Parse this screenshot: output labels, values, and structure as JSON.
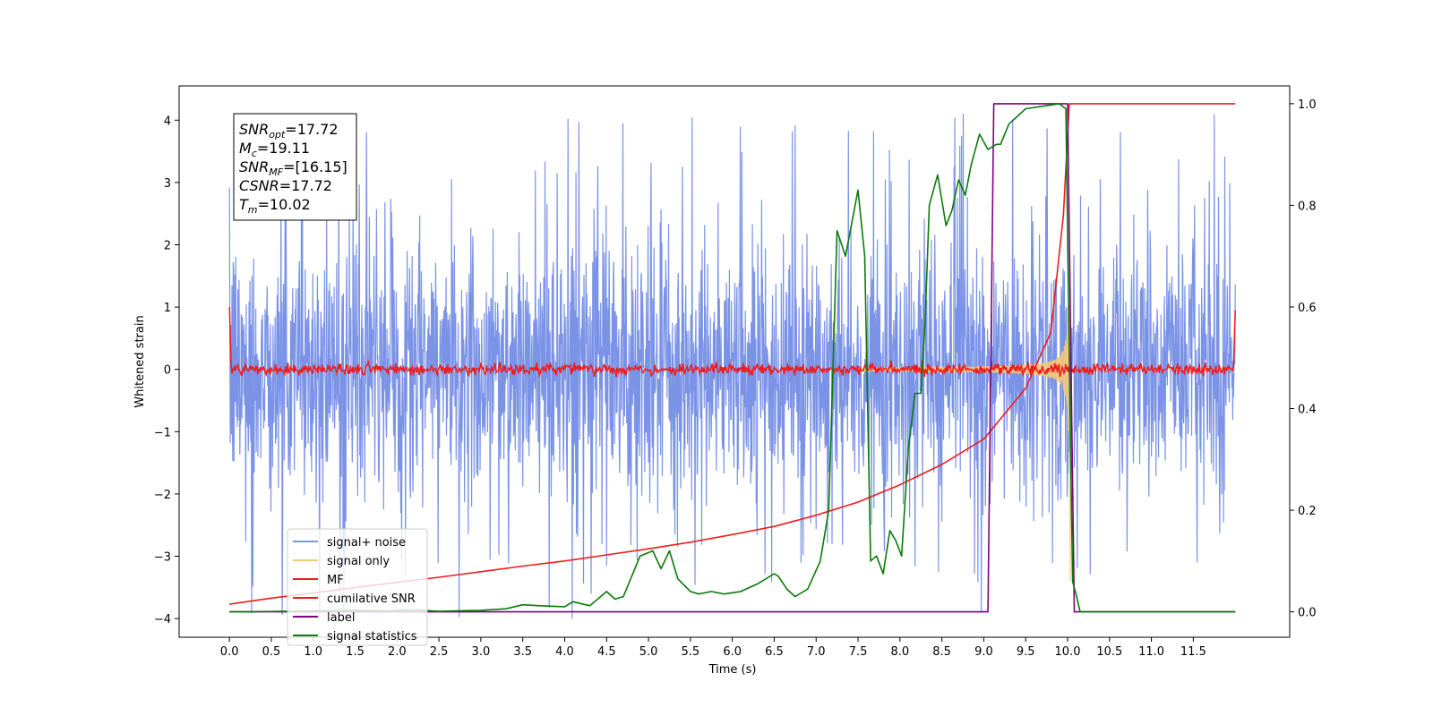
{
  "chart_data": {
    "type": "line",
    "xlabel": "Time (s)",
    "ylabel": "Whitened strain",
    "xlim": [
      -0.6,
      12.65
    ],
    "ylim": [
      -4.3,
      4.55
    ],
    "y2lim": [
      -0.05,
      1.035
    ],
    "xticks": [
      "0.0",
      "0.5",
      "1.0",
      "1.5",
      "2.0",
      "2.5",
      "3.0",
      "3.5",
      "4.0",
      "4.5",
      "5.0",
      "5.5",
      "6.0",
      "6.5",
      "7.0",
      "7.5",
      "8.0",
      "8.5",
      "9.0",
      "9.5",
      "10.0",
      "10.5",
      "11.0",
      "11.5"
    ],
    "yticks": [
      "4",
      "3",
      "2",
      "1",
      "0",
      "−1",
      "−2",
      "−3",
      "−4"
    ],
    "y2ticks": [
      "1.0",
      "0.8",
      "0.6",
      "0.4",
      "0.2",
      "0.0"
    ],
    "annotation": [
      {
        "name": "SNR",
        "sub": "opt",
        "value": "=17.72"
      },
      {
        "name": "M",
        "sub": "c",
        "value": "=19.11"
      },
      {
        "name": "SNR",
        "sub": "MF",
        "value": "=[16.15]"
      },
      {
        "name": "CSNR",
        "sub": "",
        "value": "=17.72"
      },
      {
        "name": "T",
        "sub": "m",
        "value": "=10.02"
      }
    ],
    "legend_position": "lower-left",
    "series": [
      {
        "name": "signal+ noise",
        "color": "#7b93e6",
        "axis": "left",
        "style": "noise band approx ±2.3, spikes to ±4.1, x 0–12"
      },
      {
        "name": "signal only",
        "color": "#f5c97a",
        "axis": "left",
        "style": "chirp growing to ±1 at 10.02 s, dip to −3.4"
      },
      {
        "name": "MF",
        "color": "#ee1c1c",
        "axis": "left",
        "style": "fluctuation ±0.15 around 0, 1.0 at both ends"
      },
      {
        "name": "cumilative SNR",
        "color": "#ee1c1c",
        "axis": "right",
        "x": [
          0,
          0.5,
          1,
          1.5,
          2,
          2.5,
          3,
          3.5,
          4,
          4.5,
          5,
          5.5,
          6,
          6.5,
          7,
          7.5,
          8,
          8.5,
          9,
          9.5,
          9.8,
          9.95,
          10.02,
          12
        ],
        "y": [
          0.015,
          0.027,
          0.037,
          0.048,
          0.058,
          0.068,
          0.079,
          0.09,
          0.1,
          0.112,
          0.124,
          0.137,
          0.152,
          0.168,
          0.19,
          0.216,
          0.25,
          0.29,
          0.34,
          0.44,
          0.55,
          0.78,
          1.0,
          1.0
        ]
      },
      {
        "name": "label",
        "color": "#800080",
        "axis": "right",
        "x": [
          0,
          9.05,
          9.12,
          10.0,
          10.08,
          12
        ],
        "y": [
          0,
          0,
          1,
          1,
          0,
          0
        ]
      },
      {
        "name": "signal statistics",
        "color": "#0a7a0a",
        "axis": "right",
        "x": [
          0,
          0.3,
          0.6,
          1,
          1.5,
          1.9,
          2.2,
          2.5,
          3,
          3.3,
          3.5,
          3.7,
          4,
          4.1,
          4.3,
          4.5,
          4.6,
          4.7,
          4.9,
          5.05,
          5.15,
          5.25,
          5.35,
          5.5,
          5.6,
          5.75,
          5.9,
          6.1,
          6.3,
          6.5,
          6.55,
          6.65,
          6.75,
          6.9,
          7.05,
          7.15,
          7.25,
          7.35,
          7.5,
          7.58,
          7.65,
          7.72,
          7.8,
          7.88,
          7.95,
          8.02,
          8.1,
          8.18,
          8.25,
          8.3,
          8.35,
          8.45,
          8.55,
          8.62,
          8.7,
          8.78,
          8.85,
          8.95,
          9.05,
          9.15,
          9.2,
          9.3,
          9.5,
          9.7,
          9.9,
          9.98,
          10.02,
          10.06,
          10.1,
          10.15,
          12
        ],
        "y": [
          0,
          0,
          0.001,
          0.002,
          0.003,
          0.002,
          0.004,
          0.001,
          0.003,
          0.006,
          0.014,
          0.012,
          0.01,
          0.02,
          0.012,
          0.04,
          0.025,
          0.03,
          0.11,
          0.12,
          0.085,
          0.12,
          0.065,
          0.04,
          0.035,
          0.04,
          0.035,
          0.04,
          0.055,
          0.075,
          0.07,
          0.045,
          0.03,
          0.045,
          0.1,
          0.2,
          0.75,
          0.7,
          0.83,
          0.7,
          0.1,
          0.11,
          0.075,
          0.16,
          0.14,
          0.11,
          0.32,
          0.43,
          0.43,
          0.57,
          0.8,
          0.86,
          0.76,
          0.79,
          0.85,
          0.82,
          0.88,
          0.94,
          0.91,
          0.92,
          0.92,
          0.96,
          0.99,
          0.995,
          1.0,
          0.99,
          0.5,
          0.06,
          0.035,
          0,
          0
        ]
      }
    ]
  }
}
